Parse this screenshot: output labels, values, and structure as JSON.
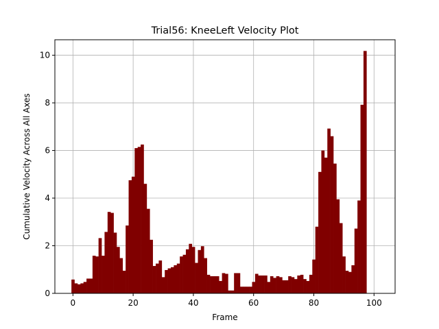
{
  "chart_data": {
    "type": "bar",
    "title": "Trial56: KneeLeft Velocity Plot",
    "xlabel": "Frame",
    "ylabel": "Cumulative Velocity Across All Axes",
    "xlim": [
      -6,
      107
    ],
    "ylim": [
      0,
      10.65
    ],
    "x_ticks": [
      0,
      20,
      40,
      60,
      80,
      100
    ],
    "y_ticks": [
      0,
      2,
      4,
      6,
      8,
      10
    ],
    "grid": true,
    "bar_color": "#800000",
    "x": [
      0,
      1,
      2,
      3,
      4,
      5,
      6,
      7,
      8,
      9,
      10,
      11,
      12,
      13,
      14,
      15,
      16,
      17,
      18,
      19,
      20,
      21,
      22,
      23,
      24,
      25,
      26,
      27,
      28,
      29,
      30,
      31,
      32,
      33,
      34,
      35,
      36,
      37,
      38,
      39,
      40,
      41,
      42,
      43,
      44,
      45,
      46,
      47,
      48,
      49,
      50,
      51,
      52,
      53,
      54,
      55,
      56,
      57,
      58,
      59,
      60,
      61,
      62,
      63,
      64,
      65,
      66,
      67,
      68,
      69,
      70,
      71,
      72,
      73,
      74,
      75,
      76,
      77,
      78,
      79,
      80,
      81,
      82,
      83,
      84,
      85,
      86,
      87,
      88,
      89,
      90,
      91,
      92,
      93,
      94,
      95,
      96,
      97,
      98,
      99,
      100,
      101
    ],
    "values": [
      0.58,
      0.42,
      0.38,
      0.42,
      0.48,
      0.62,
      0.62,
      1.58,
      1.55,
      2.32,
      1.58,
      2.58,
      3.42,
      3.38,
      2.55,
      1.95,
      1.48,
      0.95,
      2.85,
      4.75,
      4.9,
      6.1,
      6.15,
      6.25,
      4.6,
      3.55,
      2.25,
      1.15,
      1.25,
      1.38,
      0.68,
      0.98,
      1.05,
      1.1,
      1.18,
      1.25,
      1.55,
      1.62,
      1.85,
      2.08,
      1.95,
      1.28,
      1.82,
      1.98,
      1.48,
      0.78,
      0.72,
      0.72,
      0.72,
      0.52,
      0.85,
      0.82,
      0.12,
      0.12,
      0.85,
      0.85,
      0.28,
      0.28,
      0.28,
      0.28,
      0.48,
      0.82,
      0.75,
      0.75,
      0.75,
      0.48,
      0.72,
      0.65,
      0.72,
      0.68,
      0.55,
      0.55,
      0.72,
      0.68,
      0.6,
      0.75,
      0.78,
      0.6,
      0.52,
      0.78,
      1.42,
      2.8,
      5.1,
      6.0,
      5.7,
      6.92,
      6.6,
      5.45,
      3.95,
      2.95,
      1.55,
      0.95,
      0.9,
      1.18,
      2.72,
      3.9,
      7.92,
      10.18,
      0.0,
      0.0,
      0.0,
      0.0
    ]
  }
}
